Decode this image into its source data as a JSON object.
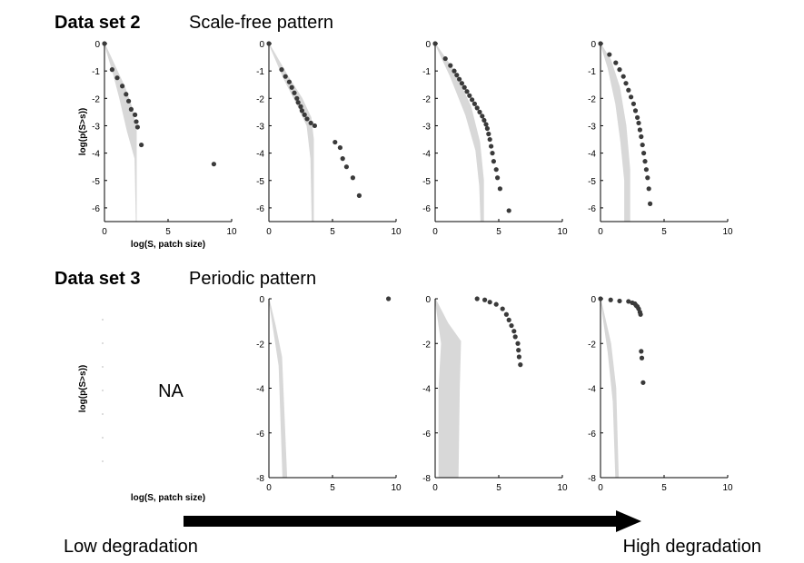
{
  "rows": [
    {
      "title": "Data set 2",
      "subtitle": "Scale-free pattern"
    },
    {
      "title": "Data set 3",
      "subtitle": "Periodic pattern"
    }
  ],
  "ylabel": "log(p(S>s))",
  "xlabel": "log(S, patch size)",
  "na_label": "NA",
  "arrow": {
    "left_label": "Low degradation",
    "right_label": "High degradation"
  },
  "colors": {
    "points": "#3a3a3a",
    "band": "#d8d8d8",
    "axis": "#000000"
  },
  "chart_data": [
    {
      "type": "scatter",
      "row": 1,
      "panel": 1,
      "xlim": [
        0,
        10
      ],
      "ylim": [
        -6.5,
        0
      ],
      "xticks": [
        0,
        5,
        10
      ],
      "yticks": [
        0,
        -1,
        -2,
        -3,
        -4,
        -5,
        -6
      ],
      "xlabel": "log(S, patch size)",
      "ylabel": "log(p(S>s))",
      "points": [
        [
          0,
          0
        ],
        [
          0.6,
          -0.95
        ],
        [
          1.0,
          -1.25
        ],
        [
          1.4,
          -1.55
        ],
        [
          1.7,
          -1.85
        ],
        [
          1.9,
          -2.1
        ],
        [
          2.1,
          -2.4
        ],
        [
          2.4,
          -2.6
        ],
        [
          2.5,
          -2.85
        ],
        [
          2.6,
          -3.05
        ],
        [
          2.9,
          -3.7
        ],
        [
          8.6,
          -4.4
        ]
      ],
      "band": {
        "upper": [
          [
            0,
            0
          ],
          [
            0.8,
            -0.8
          ],
          [
            1.6,
            -1.6
          ],
          [
            2.2,
            -2.4
          ],
          [
            2.5,
            -3.2
          ],
          [
            2.5,
            -6.5
          ]
        ],
        "lower": [
          [
            0,
            0
          ],
          [
            0.7,
            -1.1
          ],
          [
            1.2,
            -2.0
          ],
          [
            1.8,
            -3.2
          ],
          [
            2.4,
            -4.2
          ],
          [
            2.5,
            -6.5
          ]
        ]
      }
    },
    {
      "type": "scatter",
      "row": 1,
      "panel": 2,
      "xlim": [
        0,
        10
      ],
      "ylim": [
        -6.5,
        0
      ],
      "xticks": [
        0,
        5,
        10
      ],
      "yticks": [
        0,
        -1,
        -2,
        -3,
        -4,
        -5,
        -6
      ],
      "points": [
        [
          0,
          0
        ],
        [
          1.0,
          -0.95
        ],
        [
          1.3,
          -1.2
        ],
        [
          1.6,
          -1.4
        ],
        [
          1.8,
          -1.6
        ],
        [
          2.0,
          -1.8
        ],
        [
          2.2,
          -2.0
        ],
        [
          2.3,
          -2.15
        ],
        [
          2.5,
          -2.3
        ],
        [
          2.6,
          -2.45
        ],
        [
          2.8,
          -2.6
        ],
        [
          3.0,
          -2.75
        ],
        [
          3.3,
          -2.9
        ],
        [
          3.6,
          -3.0
        ],
        [
          5.2,
          -3.6
        ],
        [
          5.6,
          -3.8
        ],
        [
          5.8,
          -4.2
        ],
        [
          6.1,
          -4.5
        ],
        [
          6.6,
          -4.9
        ],
        [
          7.1,
          -5.55
        ]
      ],
      "band": {
        "upper": [
          [
            0,
            0
          ],
          [
            1.5,
            -1.2
          ],
          [
            2.6,
            -2.0
          ],
          [
            3.3,
            -2.7
          ],
          [
            3.5,
            -3.5
          ],
          [
            3.5,
            -6.5
          ]
        ],
        "lower": [
          [
            0,
            0
          ],
          [
            1.2,
            -1.3
          ],
          [
            2.2,
            -2.2
          ],
          [
            3.0,
            -3.0
          ],
          [
            3.3,
            -4.2
          ],
          [
            3.4,
            -6.5
          ]
        ]
      }
    },
    {
      "type": "scatter",
      "row": 1,
      "panel": 3,
      "xlim": [
        0,
        10
      ],
      "ylim": [
        -6.5,
        0
      ],
      "xticks": [
        0,
        5,
        10
      ],
      "yticks": [
        0,
        -1,
        -2,
        -3,
        -4,
        -5,
        -6
      ],
      "points": [
        [
          0,
          0
        ],
        [
          0.8,
          -0.55
        ],
        [
          1.2,
          -0.8
        ],
        [
          1.5,
          -1.0
        ],
        [
          1.7,
          -1.15
        ],
        [
          1.9,
          -1.3
        ],
        [
          2.1,
          -1.45
        ],
        [
          2.3,
          -1.6
        ],
        [
          2.5,
          -1.75
        ],
        [
          2.7,
          -1.9
        ],
        [
          2.9,
          -2.05
        ],
        [
          3.1,
          -2.2
        ],
        [
          3.3,
          -2.35
        ],
        [
          3.5,
          -2.5
        ],
        [
          3.7,
          -2.65
        ],
        [
          3.85,
          -2.8
        ],
        [
          4.0,
          -2.95
        ],
        [
          4.1,
          -3.1
        ],
        [
          4.2,
          -3.3
        ],
        [
          4.3,
          -3.5
        ],
        [
          4.4,
          -3.75
        ],
        [
          4.5,
          -4.0
        ],
        [
          4.6,
          -4.3
        ],
        [
          4.8,
          -4.6
        ],
        [
          4.9,
          -4.9
        ],
        [
          5.1,
          -5.3
        ],
        [
          5.8,
          -6.1
        ]
      ],
      "band": {
        "upper": [
          [
            0,
            0
          ],
          [
            1.5,
            -1.0
          ],
          [
            2.8,
            -2.3
          ],
          [
            3.5,
            -3.6
          ],
          [
            3.8,
            -5.0
          ],
          [
            3.8,
            -6.5
          ]
        ],
        "lower": [
          [
            0,
            0
          ],
          [
            1.2,
            -1.2
          ],
          [
            2.4,
            -2.6
          ],
          [
            3.2,
            -3.9
          ],
          [
            3.5,
            -5.2
          ],
          [
            3.6,
            -6.5
          ]
        ]
      }
    },
    {
      "type": "scatter",
      "row": 1,
      "panel": 4,
      "xlim": [
        0,
        10
      ],
      "ylim": [
        -6.5,
        0
      ],
      "xticks": [
        0,
        5,
        10
      ],
      "yticks": [
        0,
        -1,
        -2,
        -3,
        -4,
        -5,
        -6
      ],
      "points": [
        [
          0,
          0
        ],
        [
          0.7,
          -0.4
        ],
        [
          1.2,
          -0.7
        ],
        [
          1.5,
          -0.95
        ],
        [
          1.8,
          -1.2
        ],
        [
          2.0,
          -1.45
        ],
        [
          2.2,
          -1.7
        ],
        [
          2.4,
          -1.95
        ],
        [
          2.6,
          -2.2
        ],
        [
          2.75,
          -2.45
        ],
        [
          2.9,
          -2.7
        ],
        [
          3.0,
          -2.9
        ],
        [
          3.1,
          -3.15
        ],
        [
          3.2,
          -3.4
        ],
        [
          3.3,
          -3.7
        ],
        [
          3.4,
          -4.0
        ],
        [
          3.5,
          -4.3
        ],
        [
          3.6,
          -4.6
        ],
        [
          3.7,
          -4.9
        ],
        [
          3.8,
          -5.3
        ],
        [
          3.9,
          -5.85
        ]
      ],
      "band": {
        "upper": [
          [
            0,
            0
          ],
          [
            0.8,
            -0.6
          ],
          [
            1.5,
            -1.6
          ],
          [
            2.0,
            -3.0
          ],
          [
            2.3,
            -4.6
          ],
          [
            2.3,
            -6.5
          ]
        ],
        "lower": [
          [
            0,
            0
          ],
          [
            0.6,
            -0.9
          ],
          [
            1.2,
            -2.2
          ],
          [
            1.6,
            -3.6
          ],
          [
            1.9,
            -5.0
          ],
          [
            1.9,
            -6.5
          ]
        ]
      }
    },
    {
      "type": "scatter",
      "row": 2,
      "panel": 1,
      "na": true
    },
    {
      "type": "scatter",
      "row": 2,
      "panel": 2,
      "xlim": [
        0,
        10
      ],
      "ylim": [
        -8,
        0
      ],
      "xticks": [
        0,
        5,
        10
      ],
      "yticks": [
        0,
        -2,
        -4,
        -6,
        -8
      ],
      "points": [
        [
          9.4,
          0
        ]
      ],
      "band": {
        "upper": [
          [
            0,
            0
          ],
          [
            0.5,
            -1.2
          ],
          [
            1.0,
            -2.6
          ],
          [
            1.4,
            -8
          ]
        ],
        "lower": [
          [
            0,
            0
          ],
          [
            0.4,
            -1.5
          ],
          [
            0.8,
            -3.0
          ],
          [
            1.1,
            -8
          ]
        ]
      }
    },
    {
      "type": "scatter",
      "row": 2,
      "panel": 3,
      "xlim": [
        0,
        10
      ],
      "ylim": [
        -8,
        0
      ],
      "xticks": [
        0,
        5,
        10
      ],
      "yticks": [
        0,
        -2,
        -4,
        -6,
        -8
      ],
      "points": [
        [
          3.3,
          0
        ],
        [
          3.9,
          -0.05
        ],
        [
          4.3,
          -0.15
        ],
        [
          4.8,
          -0.25
        ],
        [
          5.3,
          -0.45
        ],
        [
          5.6,
          -0.7
        ],
        [
          5.8,
          -0.95
        ],
        [
          6.0,
          -1.2
        ],
        [
          6.2,
          -1.45
        ],
        [
          6.3,
          -1.7
        ],
        [
          6.5,
          -2.0
        ],
        [
          6.55,
          -2.3
        ],
        [
          6.6,
          -2.6
        ],
        [
          6.7,
          -2.95
        ]
      ],
      "band": {
        "upper": [
          [
            0,
            0
          ],
          [
            1.0,
            -1.1
          ],
          [
            2.0,
            -1.9
          ],
          [
            1.9,
            -4.0
          ],
          [
            1.8,
            -8
          ]
        ],
        "lower": [
          [
            0,
            0
          ],
          [
            0.5,
            -2.0
          ],
          [
            0.3,
            -4.0
          ],
          [
            0.3,
            -8
          ]
        ]
      }
    },
    {
      "type": "scatter",
      "row": 2,
      "panel": 4,
      "xlim": [
        0,
        10
      ],
      "ylim": [
        -8,
        0
      ],
      "xticks": [
        0,
        5,
        10
      ],
      "yticks": [
        0,
        -2,
        -4,
        -6,
        -8
      ],
      "points": [
        [
          0,
          0
        ],
        [
          0.8,
          -0.05
        ],
        [
          1.5,
          -0.1
        ],
        [
          2.2,
          -0.12
        ],
        [
          2.5,
          -0.18
        ],
        [
          2.7,
          -0.22
        ],
        [
          2.8,
          -0.3
        ],
        [
          2.9,
          -0.35
        ],
        [
          3.0,
          -0.45
        ],
        [
          3.1,
          -0.6
        ],
        [
          3.15,
          -0.7
        ],
        [
          3.2,
          -2.35
        ],
        [
          3.25,
          -2.65
        ],
        [
          3.35,
          -3.75
        ]
      ],
      "band": {
        "upper": [
          [
            0,
            0
          ],
          [
            0.8,
            -2.0
          ],
          [
            1.2,
            -4.0
          ],
          [
            1.4,
            -8
          ]
        ],
        "lower": [
          [
            0,
            0
          ],
          [
            0.6,
            -2.4
          ],
          [
            1.0,
            -4.6
          ],
          [
            1.2,
            -8
          ]
        ]
      }
    }
  ]
}
